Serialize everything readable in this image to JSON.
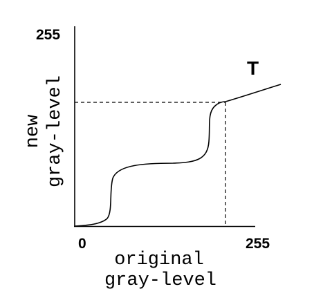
{
  "axes": {
    "x_min_label": "0",
    "x_max_label": "255",
    "y_max_label": "255",
    "x_label_line1": "original",
    "x_label_line2": "gray-level",
    "y_label_line1": "new",
    "y_label_line2": "gray-level"
  },
  "curve_label": "T",
  "colors": {
    "stroke": "#000000",
    "background": "#ffffff"
  }
}
